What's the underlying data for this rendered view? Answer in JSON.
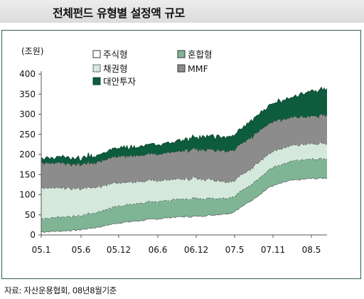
{
  "title": "전체펀드 유형별 설정액 규모",
  "source": "자료: 자산운용협회, 08년8월기준",
  "colors": {
    "stock": "#ffffff",
    "bond": "#d4e8dc",
    "mixed": "#7fb595",
    "mmf": "#8c8c8c",
    "alt": "#0e5c3e"
  },
  "chart_data": {
    "type": "area",
    "stacked": true,
    "unit_label": "(조원)",
    "ylim": [
      0,
      400
    ],
    "yticks": [
      0,
      50,
      100,
      150,
      200,
      250,
      300,
      350,
      400
    ],
    "xticks": [
      "05.1",
      "05.6",
      "05.12",
      "06.6",
      "06.12",
      "07.5",
      "07.11",
      "08.5"
    ],
    "x": [
      "05.1",
      "05.3",
      "05.6",
      "05.9",
      "05.12",
      "06.3",
      "06.6",
      "06.9",
      "06.12",
      "07.3",
      "07.5",
      "07.8",
      "07.11",
      "08.2",
      "08.5",
      "08.8"
    ],
    "series": [
      {
        "name": "주식형",
        "key": "stock",
        "values": [
          8,
          10,
          13,
          20,
          30,
          35,
          40,
          45,
          46,
          50,
          55,
          85,
          120,
          135,
          140,
          142
        ]
      },
      {
        "name": "혼합형",
        "key": "mixed",
        "values": [
          33,
          35,
          35,
          38,
          42,
          43,
          43,
          43,
          45,
          42,
          38,
          40,
          45,
          47,
          48,
          48
        ]
      },
      {
        "name": "채권형",
        "key": "bond",
        "values": [
          78,
          72,
          67,
          63,
          58,
          55,
          52,
          50,
          50,
          45,
          40,
          40,
          40,
          38,
          38,
          38
        ]
      },
      {
        "name": "MMF",
        "key": "mmf",
        "values": [
          62,
          62,
          60,
          62,
          65,
          65,
          65,
          68,
          72,
          75,
          78,
          77,
          75,
          70,
          68,
          70
        ]
      },
      {
        "name": "대안투자",
        "key": "alt",
        "values": [
          12,
          14,
          15,
          18,
          20,
          22,
          23,
          25,
          30,
          33,
          35,
          40,
          45,
          50,
          60,
          64
        ]
      }
    ],
    "legend": [
      {
        "label": "주식형",
        "key": "stock"
      },
      {
        "label": "혼합형",
        "key": "mixed"
      },
      {
        "label": "채권형",
        "key": "bond"
      },
      {
        "label": "MMF",
        "key": "mmf"
      },
      {
        "label": "대안투자",
        "key": "alt"
      }
    ],
    "legend_position": "top-left",
    "grid": false
  }
}
